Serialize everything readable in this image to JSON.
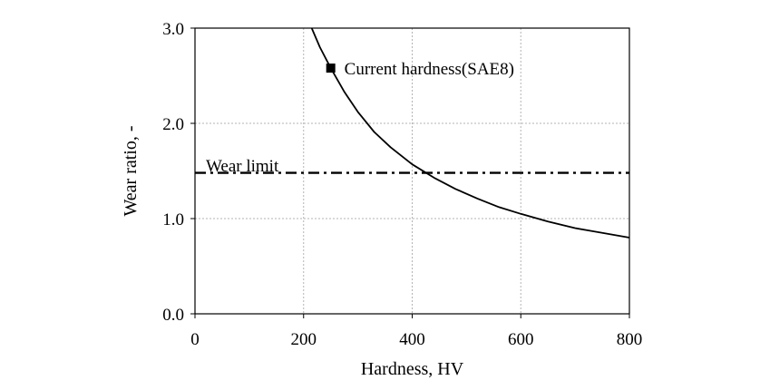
{
  "chart_data": {
    "type": "line",
    "xlabel": "Hardness,  HV",
    "ylabel": "Wear ratio, -",
    "xlim": [
      0,
      800
    ],
    "ylim": [
      0.0,
      3.0
    ],
    "xticks": [
      "0",
      "200",
      "400",
      "600",
      "800"
    ],
    "yticks": [
      "0.0",
      "1.0",
      "2.0",
      "3.0"
    ],
    "grid": true,
    "series": [
      {
        "name": "",
        "style": "solid",
        "color": "#000000",
        "x": [
          215,
          230,
          250,
          275,
          300,
          330,
          360,
          400,
          440,
          480,
          520,
          560,
          600,
          650,
          700,
          750,
          800
        ],
        "y": [
          3.0,
          2.8,
          2.58,
          2.33,
          2.12,
          1.91,
          1.75,
          1.57,
          1.43,
          1.31,
          1.21,
          1.12,
          1.05,
          0.97,
          0.9,
          0.85,
          0.8
        ]
      },
      {
        "name": "Wear limit",
        "style": "dash-dot",
        "color": "#000000",
        "x": [
          0,
          800
        ],
        "y": [
          1.48,
          1.48
        ]
      }
    ],
    "points": [
      {
        "label": "Current hardness(SAE8)",
        "x": 250,
        "y": 2.58,
        "marker": "square"
      }
    ],
    "annotations": [
      {
        "text": "Wear limit",
        "x": 20,
        "y": 1.56
      },
      {
        "text": "Current hardness(SAE8)",
        "x": 275,
        "y": 2.58
      }
    ]
  }
}
